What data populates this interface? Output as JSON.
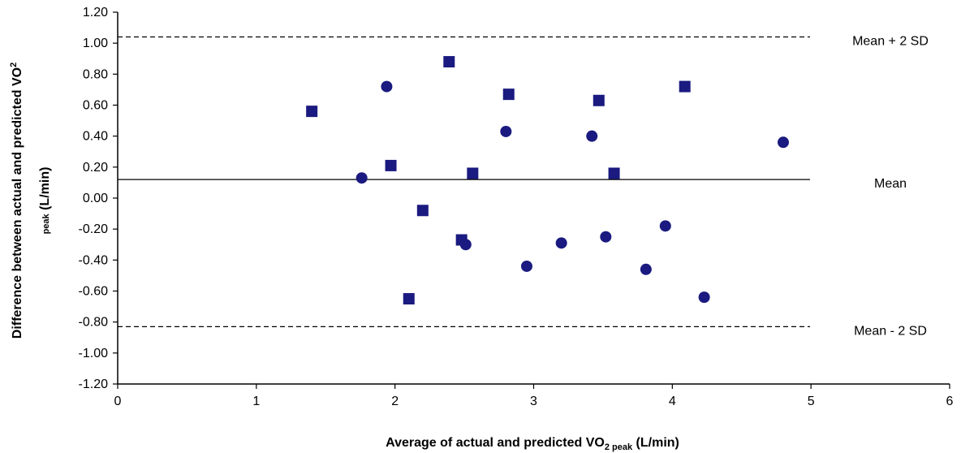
{
  "chart_data": {
    "type": "scatter",
    "xlabel": {
      "main": "Average of actual and predicted VO",
      "sub": "2 peak",
      "unit": " (L/min)"
    },
    "ylabel": {
      "main": "Difference between actual and predicted  VO",
      "sup": "2",
      "line2_sub": "peak",
      "unit": " (L/min)"
    },
    "xlim": [
      0,
      6
    ],
    "ylim": [
      -1.2,
      1.2
    ],
    "x_ticks": [
      0,
      1,
      2,
      3,
      4,
      5,
      6
    ],
    "y_ticks": [
      "1.20",
      "1.00",
      "0.80",
      "0.60",
      "0.40",
      "0.20",
      "0.00",
      "-0.20",
      "-0.40",
      "-0.60",
      "-0.80",
      "-1.00",
      "-1.20"
    ],
    "grid": false,
    "reference_lines": [
      {
        "label": "Mean + 2 SD",
        "y": 1.04,
        "style": "dashed"
      },
      {
        "label": "Mean",
        "y": 0.12,
        "style": "solid"
      },
      {
        "label": "Mean - 2 SD",
        "y": -0.83,
        "style": "dashed"
      }
    ],
    "series": [
      {
        "marker": "square",
        "color": "#1a1a80",
        "points": [
          [
            1.4,
            0.56
          ],
          [
            1.97,
            0.21
          ],
          [
            2.2,
            -0.08
          ],
          [
            2.1,
            -0.65
          ],
          [
            2.39,
            0.88
          ],
          [
            2.48,
            -0.27
          ],
          [
            2.56,
            0.16
          ],
          [
            2.82,
            0.67
          ],
          [
            3.47,
            0.63
          ],
          [
            3.58,
            0.16
          ],
          [
            4.09,
            0.72
          ]
        ]
      },
      {
        "marker": "circle",
        "color": "#1a1a80",
        "points": [
          [
            1.76,
            0.13
          ],
          [
            1.94,
            0.72
          ],
          [
            2.51,
            -0.3
          ],
          [
            2.8,
            0.43
          ],
          [
            2.95,
            -0.44
          ],
          [
            3.2,
            -0.29
          ],
          [
            3.42,
            0.4
          ],
          [
            3.52,
            -0.25
          ],
          [
            3.81,
            -0.46
          ],
          [
            3.95,
            -0.18
          ],
          [
            4.23,
            -0.64
          ],
          [
            4.8,
            0.36
          ]
        ]
      }
    ]
  }
}
